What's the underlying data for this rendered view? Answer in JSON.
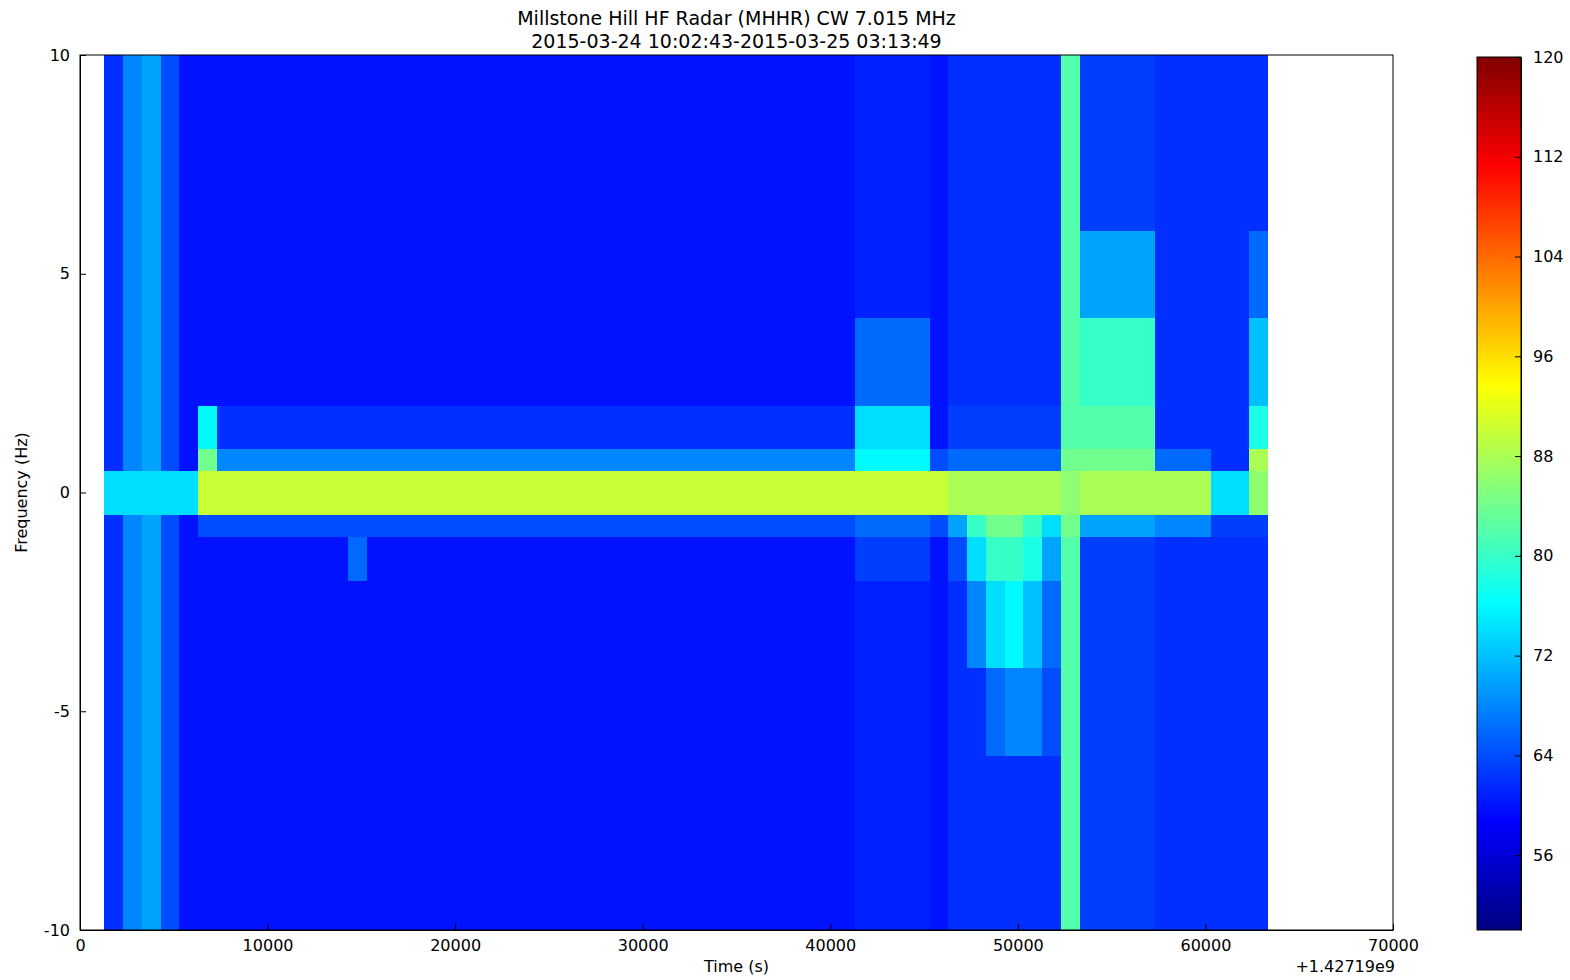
{
  "chart_data": {
    "type": "heatmap",
    "title": "Millstone Hill HF Radar (MHHR) CW 7.015 MHz",
    "subtitle": "2015-03-24 10:02:43-2015-03-25 03:13:49",
    "xlabel": "Time (s)",
    "ylabel": "Frequency (Hz)",
    "annotations": [
      "+1.42719e9"
    ],
    "xlim": [
      0,
      70000
    ],
    "xticks": [
      0,
      10000,
      20000,
      30000,
      40000,
      50000,
      60000,
      70000
    ],
    "ylim": [
      -10,
      10
    ],
    "yticks": [
      -10,
      -5,
      0,
      5,
      10
    ],
    "x_edges": [
      1300,
      2300,
      3300,
      4300,
      5300,
      6300,
      7300,
      8300,
      9300,
      10300,
      11300,
      12300,
      13300,
      14300,
      15300,
      16300,
      17300,
      18300,
      19300,
      20300,
      21300,
      22300,
      23300,
      24300,
      25300,
      26300,
      27300,
      28300,
      29300,
      30300,
      31300,
      32300,
      33300,
      34300,
      35300,
      36300,
      37300,
      38300,
      39300,
      40300,
      41300,
      42300,
      43300,
      44300,
      45300,
      46300,
      47300,
      48300,
      49300,
      50300,
      51300,
      52300,
      53300,
      54300,
      55300,
      56300,
      57300,
      58300,
      59300,
      60300,
      61300,
      62300,
      63300
    ],
    "y_edges": [
      -10,
      -8,
      -6,
      -4,
      -2,
      -1,
      -0.5,
      0.5,
      1,
      2,
      4,
      6,
      8,
      10
    ],
    "cells": [
      [
        62,
        68,
        70,
        64,
        60,
        60,
        60,
        60,
        60,
        60,
        60,
        60,
        60,
        60,
        60,
        60,
        60,
        60,
        60,
        60,
        60,
        60,
        60,
        60,
        60,
        60,
        60,
        60,
        60,
        60,
        60,
        60,
        60,
        60,
        60,
        60,
        60,
        60,
        60,
        60,
        61,
        61,
        61,
        61,
        60,
        62,
        62,
        62,
        62,
        62,
        62,
        82,
        63,
        63,
        63,
        63,
        62,
        62,
        62,
        62,
        62,
        62
      ],
      [
        62,
        68,
        70,
        64,
        60,
        60,
        60,
        60,
        60,
        60,
        60,
        60,
        60,
        60,
        60,
        60,
        60,
        60,
        60,
        60,
        60,
        60,
        60,
        60,
        60,
        60,
        60,
        60,
        60,
        60,
        60,
        60,
        60,
        60,
        60,
        60,
        60,
        60,
        60,
        60,
        61,
        61,
        61,
        61,
        60,
        62,
        62,
        62,
        62,
        62,
        62,
        82,
        63,
        63,
        63,
        63,
        62,
        62,
        62,
        62,
        62,
        62
      ],
      [
        62,
        68,
        70,
        64,
        60,
        60,
        60,
        60,
        60,
        60,
        60,
        60,
        60,
        60,
        60,
        60,
        60,
        60,
        60,
        60,
        60,
        60,
        60,
        60,
        60,
        60,
        60,
        60,
        60,
        60,
        60,
        60,
        60,
        60,
        60,
        60,
        60,
        60,
        60,
        60,
        61,
        61,
        61,
        61,
        60,
        62,
        62,
        66,
        68,
        68,
        64,
        82,
        63,
        63,
        63,
        63,
        62,
        62,
        62,
        62,
        62,
        62
      ],
      [
        62,
        68,
        70,
        64,
        60,
        60,
        60,
        60,
        60,
        60,
        60,
        60,
        60,
        60,
        60,
        60,
        60,
        60,
        60,
        60,
        60,
        60,
        60,
        60,
        60,
        60,
        60,
        60,
        60,
        60,
        60,
        60,
        60,
        60,
        60,
        60,
        60,
        60,
        60,
        60,
        61,
        61,
        61,
        61,
        60,
        62,
        68,
        74,
        76,
        72,
        66,
        82,
        63,
        63,
        63,
        63,
        62,
        62,
        62,
        62,
        62,
        62
      ],
      [
        62,
        68,
        70,
        64,
        60,
        60,
        60,
        60,
        60,
        60,
        60,
        60,
        60,
        66,
        60,
        60,
        60,
        60,
        60,
        60,
        60,
        60,
        60,
        60,
        60,
        60,
        60,
        60,
        60,
        60,
        60,
        60,
        60,
        60,
        60,
        60,
        60,
        60,
        60,
        60,
        63,
        63,
        63,
        63,
        60,
        64,
        74,
        80,
        80,
        78,
        70,
        82,
        63,
        63,
        63,
        63,
        62,
        62,
        62,
        62,
        62,
        62
      ],
      [
        62,
        68,
        70,
        64,
        60,
        64,
        64,
        64,
        64,
        64,
        64,
        64,
        64,
        64,
        64,
        64,
        64,
        64,
        64,
        64,
        64,
        64,
        64,
        64,
        64,
        64,
        64,
        64,
        64,
        64,
        64,
        64,
        64,
        64,
        64,
        64,
        64,
        64,
        64,
        64,
        66,
        66,
        66,
        66,
        64,
        70,
        80,
        84,
        84,
        80,
        74,
        84,
        70,
        70,
        70,
        70,
        68,
        68,
        68,
        63,
        63,
        63
      ],
      [
        74,
        74,
        74,
        74,
        74,
        90,
        90,
        90,
        90,
        90,
        90,
        90,
        90,
        90,
        90,
        90,
        90,
        90,
        90,
        90,
        90,
        90,
        90,
        90,
        90,
        90,
        90,
        90,
        90,
        90,
        90,
        90,
        90,
        90,
        90,
        90,
        90,
        90,
        90,
        90,
        90,
        90,
        90,
        90,
        90,
        88,
        88,
        88,
        88,
        88,
        88,
        86,
        88,
        88,
        88,
        88,
        88,
        88,
        88,
        74,
        74,
        86
      ],
      [
        62,
        68,
        70,
        64,
        60,
        84,
        68,
        68,
        68,
        68,
        68,
        68,
        68,
        68,
        68,
        68,
        68,
        68,
        68,
        68,
        68,
        68,
        68,
        68,
        68,
        68,
        68,
        68,
        68,
        68,
        68,
        68,
        68,
        68,
        68,
        68,
        68,
        68,
        68,
        68,
        76,
        76,
        76,
        76,
        64,
        66,
        66,
        66,
        66,
        66,
        66,
        84,
        84,
        84,
        84,
        84,
        66,
        66,
        66,
        62,
        62,
        88
      ],
      [
        62,
        68,
        70,
        64,
        60,
        76,
        62,
        62,
        62,
        62,
        62,
        62,
        62,
        62,
        62,
        62,
        62,
        62,
        62,
        62,
        62,
        62,
        62,
        62,
        62,
        62,
        62,
        62,
        62,
        62,
        62,
        62,
        62,
        62,
        62,
        62,
        62,
        62,
        62,
        62,
        74,
        74,
        74,
        74,
        60,
        63,
        63,
        63,
        63,
        63,
        63,
        82,
        82,
        82,
        82,
        82,
        62,
        62,
        62,
        62,
        62,
        78
      ],
      [
        62,
        68,
        70,
        64,
        60,
        60,
        60,
        60,
        60,
        60,
        60,
        60,
        60,
        60,
        60,
        60,
        60,
        60,
        60,
        60,
        60,
        60,
        60,
        60,
        60,
        60,
        60,
        60,
        60,
        60,
        60,
        60,
        60,
        60,
        60,
        60,
        60,
        60,
        60,
        60,
        66,
        66,
        66,
        66,
        60,
        62,
        62,
        62,
        62,
        62,
        62,
        82,
        80,
        80,
        80,
        80,
        62,
        62,
        62,
        62,
        62,
        72
      ],
      [
        62,
        68,
        70,
        64,
        60,
        60,
        60,
        60,
        60,
        60,
        60,
        60,
        60,
        60,
        60,
        60,
        60,
        60,
        60,
        60,
        60,
        60,
        60,
        60,
        60,
        60,
        60,
        60,
        60,
        60,
        60,
        60,
        60,
        60,
        60,
        60,
        60,
        60,
        60,
        60,
        61,
        61,
        61,
        61,
        60,
        62,
        62,
        62,
        62,
        62,
        62,
        82,
        70,
        70,
        70,
        70,
        62,
        62,
        62,
        62,
        62,
        66
      ],
      [
        62,
        68,
        70,
        64,
        60,
        60,
        60,
        60,
        60,
        60,
        60,
        60,
        60,
        60,
        60,
        60,
        60,
        60,
        60,
        60,
        60,
        60,
        60,
        60,
        60,
        60,
        60,
        60,
        60,
        60,
        60,
        60,
        60,
        60,
        60,
        60,
        60,
        60,
        60,
        60,
        61,
        61,
        61,
        61,
        60,
        62,
        62,
        62,
        62,
        62,
        62,
        82,
        63,
        63,
        63,
        63,
        62,
        62,
        62,
        62,
        62,
        62
      ],
      [
        62,
        68,
        70,
        64,
        60,
        60,
        60,
        60,
        60,
        60,
        60,
        60,
        60,
        60,
        60,
        60,
        60,
        60,
        60,
        60,
        60,
        60,
        60,
        60,
        60,
        60,
        60,
        60,
        60,
        60,
        60,
        60,
        60,
        60,
        60,
        60,
        60,
        60,
        60,
        60,
        61,
        61,
        61,
        61,
        60,
        62,
        62,
        62,
        62,
        62,
        62,
        82,
        63,
        63,
        63,
        63,
        62,
        62,
        62,
        62,
        62,
        62
      ]
    ],
    "colorbar": {
      "lim": [
        50,
        120
      ],
      "ticks": [
        56,
        64,
        72,
        80,
        88,
        96,
        104,
        112,
        120
      ]
    }
  }
}
